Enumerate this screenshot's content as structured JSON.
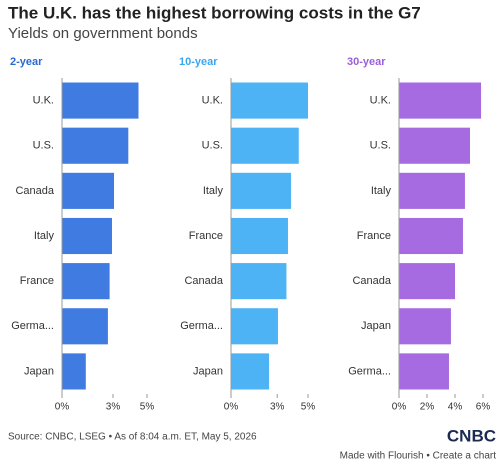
{
  "title": "The U.K. has the highest borrowing costs in the G7",
  "subtitle": "Yields on government bonds",
  "source": "Source: CNBC, LSEG • As of 8:04 a.m. ET, May 5, 2026",
  "logo": "CNBC",
  "credit": "Made with Flourish • Create a chart",
  "chart_data": [
    {
      "type": "bar",
      "orientation": "horizontal",
      "title": "2-year",
      "color": "#3f7be0",
      "title_color": "#2a6acd",
      "categories": [
        "U.K.",
        "U.S.",
        "Canada",
        "Italy",
        "France",
        "Germa...",
        "Japan"
      ],
      "values": [
        4.5,
        3.9,
        3.06,
        2.94,
        2.8,
        2.7,
        1.4
      ],
      "xlim": [
        0,
        5.5
      ],
      "xticks": [
        {
          "value": 0,
          "label": "0%"
        },
        {
          "value": 3,
          "label": "3%"
        },
        {
          "value": 5,
          "label": "5%"
        }
      ]
    },
    {
      "type": "bar",
      "orientation": "horizontal",
      "title": "10-year",
      "color": "#4db3f5",
      "title_color": "#3aa6ee",
      "categories": [
        "U.K.",
        "U.S.",
        "Italy",
        "France",
        "Canada",
        "Germa...",
        "Japan"
      ],
      "values": [
        5.0,
        4.4,
        3.9,
        3.7,
        3.6,
        3.05,
        2.47
      ],
      "xlim": [
        0,
        5.5
      ],
      "xticks": [
        {
          "value": 0,
          "label": "0%"
        },
        {
          "value": 3,
          "label": "3%"
        },
        {
          "value": 5,
          "label": "5%"
        }
      ]
    },
    {
      "type": "bar",
      "orientation": "horizontal",
      "title": "30-year",
      "color": "#a66be0",
      "title_color": "#9b5fd8",
      "categories": [
        "U.K.",
        "U.S.",
        "Italy",
        "France",
        "Canada",
        "Japan",
        "Germa..."
      ],
      "values": [
        5.86,
        5.07,
        4.71,
        4.57,
        4.0,
        3.71,
        3.57
      ],
      "xlim": [
        0,
        6.2
      ],
      "xticks": [
        {
          "value": 0,
          "label": "0%"
        },
        {
          "value": 2,
          "label": "2%"
        },
        {
          "value": 4,
          "label": "4%"
        },
        {
          "value": 6,
          "label": "6%"
        }
      ]
    }
  ]
}
